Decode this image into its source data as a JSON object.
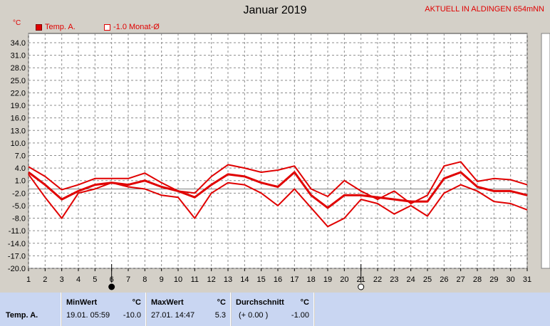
{
  "header": {
    "title": "Januar 2019",
    "station": "AKTUELL IN ALDINGEN 654mNN",
    "unit": "°C"
  },
  "legend": [
    {
      "label": "Temp. A.",
      "color": "#e00000"
    },
    {
      "label": "-1.0 Monat-Ø",
      "color": "#e00000"
    }
  ],
  "colors": {
    "line": "#e00000",
    "grid": "#8c8c8c",
    "mean": "#808080",
    "plot_bg": "#ffffff"
  },
  "chart_data": {
    "type": "line",
    "x": [
      1,
      2,
      3,
      4,
      5,
      6,
      7,
      8,
      9,
      10,
      11,
      12,
      13,
      14,
      15,
      16,
      17,
      18,
      19,
      20,
      21,
      22,
      23,
      24,
      25,
      26,
      27,
      28,
      29,
      30,
      31
    ],
    "xlabel": "",
    "ylabel": "°C",
    "ylim": [
      -20,
      34
    ],
    "yticks": [
      34.0,
      31.0,
      28.0,
      25.0,
      22.0,
      19.0,
      16.0,
      13.0,
      10.0,
      7.0,
      4.0,
      1.0,
      -2.0,
      -5.0,
      -8.0,
      -11.0,
      -14.0,
      -17.0,
      -20.0
    ],
    "grid": true,
    "mean_line": -1.0,
    "moon_markers": [
      {
        "day": 6,
        "phase": "new-moon"
      },
      {
        "day": 21,
        "phase": "full-moon"
      }
    ],
    "series": [
      {
        "values": [
          4.3,
          2.0,
          -1.2,
          0.0,
          1.5,
          1.5,
          1.5,
          2.8,
          0.5,
          -1.5,
          -2.0,
          2.0,
          4.8,
          4.0,
          3.0,
          3.5,
          4.5,
          -1.0,
          -2.8,
          1.0,
          -1.5,
          -3.5,
          -1.5,
          -4.5,
          -2.5,
          4.5,
          5.5,
          0.8,
          1.5,
          1.2,
          0.0
        ]
      },
      {
        "values": [
          3.0,
          0.0,
          -3.5,
          -1.5,
          0.0,
          0.5,
          0.0,
          1.0,
          -0.5,
          -1.5,
          -3.0,
          0.0,
          2.5,
          2.0,
          0.5,
          -0.5,
          3.0,
          -2.5,
          -5.5,
          -2.5,
          -2.5,
          -3.0,
          -3.5,
          -4.0,
          -4.0,
          1.5,
          3.0,
          -0.5,
          -1.5,
          -1.5,
          -2.5
        ]
      },
      {
        "values": [
          2.5,
          -3.0,
          -8.0,
          -2.0,
          -1.0,
          0.5,
          -0.5,
          -1.0,
          -2.5,
          -3.0,
          -8.0,
          -2.0,
          0.5,
          0.0,
          -2.0,
          -5.0,
          -1.0,
          -5.5,
          -10.0,
          -8.0,
          -3.5,
          -4.5,
          -7.0,
          -5.0,
          -7.5,
          -2.0,
          0.0,
          -1.5,
          -4.0,
          -4.5,
          -6.0
        ]
      }
    ]
  },
  "table": {
    "row_label": "Temp. A.",
    "headers": {
      "min": "MinWert",
      "max": "MaxWert",
      "avg": "Durchschnitt",
      "unit": "°C"
    },
    "min": {
      "time": "19.01.  05:59",
      "value": "-10.0"
    },
    "max": {
      "time": "27.01.  14:47",
      "value": "5.3"
    },
    "avg": {
      "note": "(+ 0.00 )",
      "value": "-1.00"
    }
  }
}
